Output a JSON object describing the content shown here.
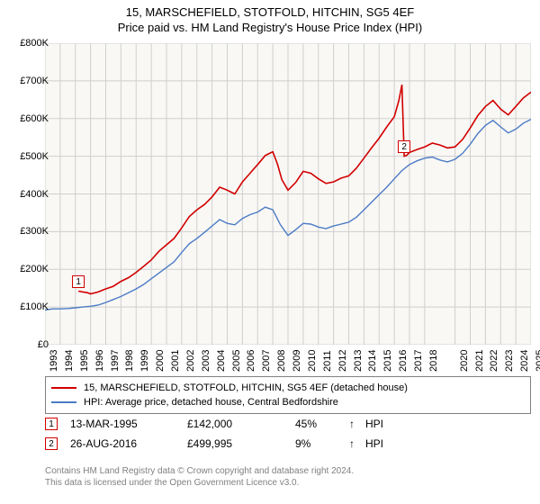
{
  "title_line1": "15, MARSCHEFIELD, STOTFOLD, HITCHIN, SG5 4EF",
  "title_line2": "Price paid vs. HM Land Registry's House Price Index (HPI)",
  "chart": {
    "type": "line",
    "background_color": "#f9f8f5",
    "grid_color": "#cfcfcf",
    "axis_color": "#808080",
    "text_color": "#000000",
    "font_size_title": 13,
    "font_size_tick": 11,
    "ylim": [
      0,
      800
    ],
    "ytick_step": 100,
    "ytick_labels": [
      "£0",
      "£100K",
      "£200K",
      "£300K",
      "£400K",
      "£500K",
      "£600K",
      "£700K",
      "£800K"
    ],
    "xlim": [
      1993,
      2025
    ],
    "xtick_years": [
      1993,
      1994,
      1995,
      1996,
      1997,
      1998,
      1999,
      2000,
      2001,
      2002,
      2003,
      2004,
      2005,
      2006,
      2007,
      2008,
      2009,
      2010,
      2011,
      2012,
      2013,
      2014,
      2015,
      2016,
      2017,
      2018,
      2020,
      2021,
      2022,
      2023,
      2024,
      2025
    ],
    "series_paid": {
      "color": "#d10000",
      "width": 1.6,
      "label": "15, MARSCHEFIELD, STOTFOLD, HITCHIN, SG5 4EF (detached house)",
      "points": [
        [
          1995.2,
          142
        ],
        [
          1995.5,
          140
        ],
        [
          1995.8,
          138
        ],
        [
          1996.0,
          135
        ],
        [
          1996.5,
          140
        ],
        [
          1997.0,
          148
        ],
        [
          1997.5,
          155
        ],
        [
          1998.0,
          168
        ],
        [
          1998.5,
          178
        ],
        [
          1999.0,
          192
        ],
        [
          1999.5,
          208
        ],
        [
          2000.0,
          225
        ],
        [
          2000.5,
          248
        ],
        [
          2001.0,
          265
        ],
        [
          2001.5,
          282
        ],
        [
          2002.0,
          310
        ],
        [
          2002.5,
          340
        ],
        [
          2003.0,
          358
        ],
        [
          2003.5,
          372
        ],
        [
          2004.0,
          392
        ],
        [
          2004.5,
          418
        ],
        [
          2005.0,
          410
        ],
        [
          2005.5,
          400
        ],
        [
          2006.0,
          432
        ],
        [
          2006.5,
          455
        ],
        [
          2007.0,
          478
        ],
        [
          2007.5,
          502
        ],
        [
          2008.0,
          512
        ],
        [
          2008.3,
          480
        ],
        [
          2008.6,
          438
        ],
        [
          2009.0,
          410
        ],
        [
          2009.5,
          430
        ],
        [
          2010.0,
          460
        ],
        [
          2010.5,
          455
        ],
        [
          2011.0,
          440
        ],
        [
          2011.5,
          428
        ],
        [
          2012.0,
          432
        ],
        [
          2012.5,
          442
        ],
        [
          2013.0,
          448
        ],
        [
          2013.5,
          468
        ],
        [
          2014.0,
          495
        ],
        [
          2014.5,
          522
        ],
        [
          2015.0,
          548
        ],
        [
          2015.5,
          578
        ],
        [
          2016.0,
          605
        ],
        [
          2016.3,
          648
        ],
        [
          2016.5,
          690
        ],
        [
          2016.65,
          500
        ],
        [
          2016.8,
          502
        ],
        [
          2017.0,
          510
        ],
        [
          2017.5,
          518
        ],
        [
          2018.0,
          525
        ],
        [
          2018.5,
          535
        ],
        [
          2019.0,
          530
        ],
        [
          2019.5,
          522
        ],
        [
          2020.0,
          525
        ],
        [
          2020.5,
          545
        ],
        [
          2021.0,
          575
        ],
        [
          2021.5,
          608
        ],
        [
          2022.0,
          632
        ],
        [
          2022.5,
          648
        ],
        [
          2023.0,
          625
        ],
        [
          2023.5,
          610
        ],
        [
          2024.0,
          632
        ],
        [
          2024.5,
          655
        ],
        [
          2025.0,
          670
        ]
      ]
    },
    "series_hpi": {
      "color": "#4c7bc5",
      "width": 1.4,
      "label": "HPI: Average price, detached house, Central Bedfordshire",
      "points": [
        [
          1993.0,
          92
        ],
        [
          1993.5,
          95
        ],
        [
          1994.0,
          95
        ],
        [
          1994.5,
          96
        ],
        [
          1995.0,
          98
        ],
        [
          1995.5,
          100
        ],
        [
          1996.0,
          102
        ],
        [
          1996.5,
          105
        ],
        [
          1997.0,
          112
        ],
        [
          1997.5,
          120
        ],
        [
          1998.0,
          128
        ],
        [
          1998.5,
          138
        ],
        [
          1999.0,
          148
        ],
        [
          1999.5,
          160
        ],
        [
          2000.0,
          175
        ],
        [
          2000.5,
          190
        ],
        [
          2001.0,
          205
        ],
        [
          2001.5,
          220
        ],
        [
          2002.0,
          245
        ],
        [
          2002.5,
          268
        ],
        [
          2003.0,
          282
        ],
        [
          2003.5,
          298
        ],
        [
          2004.0,
          315
        ],
        [
          2004.5,
          332
        ],
        [
          2005.0,
          322
        ],
        [
          2005.5,
          318
        ],
        [
          2006.0,
          335
        ],
        [
          2006.5,
          345
        ],
        [
          2007.0,
          352
        ],
        [
          2007.5,
          365
        ],
        [
          2008.0,
          358
        ],
        [
          2008.5,
          318
        ],
        [
          2009.0,
          290
        ],
        [
          2009.5,
          305
        ],
        [
          2010.0,
          322
        ],
        [
          2010.5,
          320
        ],
        [
          2011.0,
          312
        ],
        [
          2011.5,
          308
        ],
        [
          2012.0,
          315
        ],
        [
          2012.5,
          320
        ],
        [
          2013.0,
          325
        ],
        [
          2013.5,
          338
        ],
        [
          2014.0,
          358
        ],
        [
          2014.5,
          378
        ],
        [
          2015.0,
          398
        ],
        [
          2015.5,
          418
        ],
        [
          2016.0,
          440
        ],
        [
          2016.5,
          462
        ],
        [
          2017.0,
          478
        ],
        [
          2017.5,
          488
        ],
        [
          2018.0,
          495
        ],
        [
          2018.5,
          498
        ],
        [
          2019.0,
          490
        ],
        [
          2019.5,
          485
        ],
        [
          2020.0,
          492
        ],
        [
          2020.5,
          508
        ],
        [
          2021.0,
          532
        ],
        [
          2021.5,
          560
        ],
        [
          2022.0,
          582
        ],
        [
          2022.5,
          595
        ],
        [
          2023.0,
          578
        ],
        [
          2023.5,
          562
        ],
        [
          2024.0,
          572
        ],
        [
          2024.5,
          588
        ],
        [
          2025.0,
          598
        ]
      ]
    },
    "markers": [
      {
        "n": "1",
        "x": 1995.2,
        "y": 142,
        "color": "#d10000"
      },
      {
        "n": "2",
        "x": 2016.65,
        "y": 500,
        "color": "#d10000"
      }
    ]
  },
  "legend": {
    "border_color": "#808080",
    "rows": [
      {
        "color": "#d10000",
        "label": "15, MARSCHEFIELD, STOTFOLD, HITCHIN, SG5 4EF (detached house)"
      },
      {
        "color": "#4c7bc5",
        "label": "HPI: Average price, detached house, Central Bedfordshire"
      }
    ]
  },
  "sales": [
    {
      "n": "1",
      "marker_color": "#d10000",
      "date": "13-MAR-1995",
      "price": "£142,000",
      "pct": "45%",
      "arrow": "↑",
      "hpi": "HPI"
    },
    {
      "n": "2",
      "marker_color": "#d10000",
      "date": "26-AUG-2016",
      "price": "£499,995",
      "pct": "9%",
      "arrow": "↑",
      "hpi": "HPI"
    }
  ],
  "footer_line1": "Contains HM Land Registry data © Crown copyright and database right 2024.",
  "footer_line2": "This data is licensed under the Open Government Licence v3.0."
}
